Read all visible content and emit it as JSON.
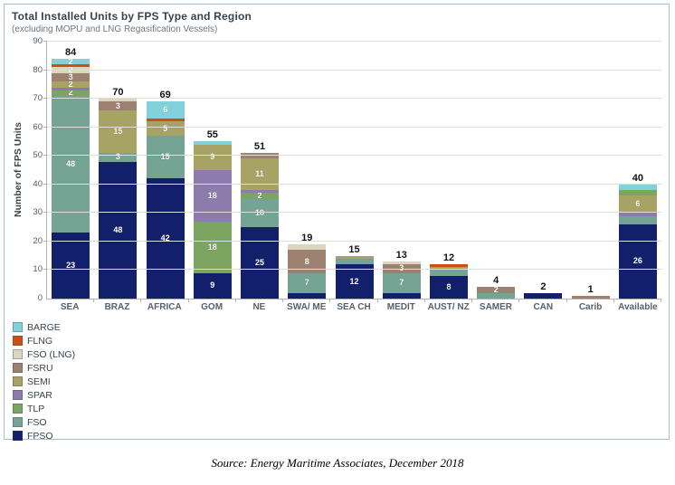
{
  "header": {
    "title": "Total Installed Units by FPS Type and Region",
    "subtitle": "(excluding MOPU and LNG Regasification Vessels)"
  },
  "y_axis": {
    "label": "Number of FPS Units",
    "ticks": [
      0,
      10,
      20,
      30,
      40,
      50,
      60,
      70,
      80,
      90
    ],
    "max": 90
  },
  "types": {
    "FPSO": "#12206b",
    "FSO": "#75a494",
    "TLP": "#7da562",
    "SPAR": "#8d7bad",
    "SEMI": "#a7a365",
    "FSRU": "#9c8170",
    "FSO (LNG)": "#dcd5bf",
    "FLNG": "#cc4f16",
    "BARGE": "#82d1da"
  },
  "legend": {
    "position": "bottom-left",
    "items": [
      "BARGE",
      "FLNG",
      "FSO (LNG)",
      "FSRU",
      "SEMI",
      "SPAR",
      "TLP",
      "FSO",
      "FPSO"
    ]
  },
  "chart_data": {
    "type": "bar",
    "stacked": true,
    "grid": true,
    "title": "Total Installed Units by FPS Type and Region",
    "subtitle": "(excluding MOPU and LNG Regasification Vessels)",
    "xlabel": "",
    "ylabel": "Number of FPS Units",
    "ylim": [
      0,
      90
    ],
    "categories": [
      "SEA",
      "BRAZ",
      "AFRICA",
      "GOM",
      "NE",
      "SWA/ ME",
      "SEA CH",
      "MEDIT",
      "AUST/ NZ",
      "SAMER",
      "CAN",
      "Carib",
      "Available"
    ],
    "totals": [
      84,
      70,
      69,
      55,
      51,
      19,
      15,
      13,
      12,
      4,
      2,
      1,
      40
    ],
    "bars": [
      {
        "category": "SEA",
        "total": 84,
        "segments": [
          {
            "type": "FPSO",
            "value": 23,
            "label": "23"
          },
          {
            "type": "FSO",
            "value": 48,
            "label": "48"
          },
          {
            "type": "TLP",
            "value": 2,
            "label": "2"
          },
          {
            "type": "SPAR",
            "value": 1,
            "label": ""
          },
          {
            "type": "SEMI",
            "value": 2,
            "label": "2"
          },
          {
            "type": "FSRU",
            "value": 3,
            "label": "3"
          },
          {
            "type": "FSO (LNG)",
            "value": 2,
            "label": "2"
          },
          {
            "type": "FLNG",
            "value": 1,
            "label": ""
          },
          {
            "type": "BARGE",
            "value": 2,
            "label": "2"
          }
        ]
      },
      {
        "category": "BRAZ",
        "total": 70,
        "segments": [
          {
            "type": "FPSO",
            "value": 48,
            "label": "48"
          },
          {
            "type": "FSO",
            "value": 3,
            "label": "3"
          },
          {
            "type": "SEMI",
            "value": 15,
            "label": "15"
          },
          {
            "type": "FSRU",
            "value": 3,
            "label": "3"
          },
          {
            "type": "FSO (LNG)",
            "value": 1,
            "label": ""
          }
        ]
      },
      {
        "category": "AFRICA",
        "total": 69,
        "segments": [
          {
            "type": "FPSO",
            "value": 42,
            "label": "42"
          },
          {
            "type": "FSO",
            "value": 15,
            "label": "15"
          },
          {
            "type": "SEMI",
            "value": 5,
            "label": "5"
          },
          {
            "type": "FLNG",
            "value": 1,
            "label": ""
          },
          {
            "type": "BARGE",
            "value": 6,
            "label": "6"
          }
        ]
      },
      {
        "category": "GOM",
        "total": 55,
        "segments": [
          {
            "type": "FPSO",
            "value": 9,
            "label": "9"
          },
          {
            "type": "TLP",
            "value": 18,
            "label": "18"
          },
          {
            "type": "SPAR",
            "value": 18,
            "label": "18"
          },
          {
            "type": "SEMI",
            "value": 9,
            "label": "9"
          },
          {
            "type": "BARGE",
            "value": 1,
            "label": ""
          }
        ]
      },
      {
        "category": "NE",
        "total": 51,
        "segments": [
          {
            "type": "FPSO",
            "value": 25,
            "label": "25"
          },
          {
            "type": "FSO",
            "value": 10,
            "label": "10"
          },
          {
            "type": "TLP",
            "value": 2,
            "label": "2"
          },
          {
            "type": "SPAR",
            "value": 1,
            "label": ""
          },
          {
            "type": "SEMI",
            "value": 11,
            "label": "11"
          },
          {
            "type": "FSRU",
            "value": 2,
            "label": ""
          }
        ]
      },
      {
        "category": "SWA/ ME",
        "total": 19,
        "segments": [
          {
            "type": "FPSO",
            "value": 2,
            "label": ""
          },
          {
            "type": "FSO",
            "value": 7,
            "label": "7"
          },
          {
            "type": "FSRU",
            "value": 8,
            "label": "8"
          },
          {
            "type": "FSO (LNG)",
            "value": 2,
            "label": ""
          }
        ]
      },
      {
        "category": "SEA CH",
        "total": 15,
        "segments": [
          {
            "type": "FPSO",
            "value": 12,
            "label": "12"
          },
          {
            "type": "FSO",
            "value": 2,
            "label": ""
          },
          {
            "type": "SEMI",
            "value": 1,
            "label": ""
          }
        ]
      },
      {
        "category": "MEDIT",
        "total": 13,
        "segments": [
          {
            "type": "FPSO",
            "value": 2,
            "label": ""
          },
          {
            "type": "FSO",
            "value": 7,
            "label": "7"
          },
          {
            "type": "FSRU",
            "value": 3,
            "label": "3"
          },
          {
            "type": "FSO (LNG)",
            "value": 1,
            "label": ""
          }
        ]
      },
      {
        "category": "AUST/ NZ",
        "total": 12,
        "segments": [
          {
            "type": "FPSO",
            "value": 8,
            "label": "8"
          },
          {
            "type": "FSO",
            "value": 2,
            "label": ""
          },
          {
            "type": "SEMI",
            "value": 1,
            "label": ""
          },
          {
            "type": "FLNG",
            "value": 1,
            "label": ""
          }
        ]
      },
      {
        "category": "SAMER",
        "total": 4,
        "segments": [
          {
            "type": "FSO",
            "value": 2,
            "label": ""
          },
          {
            "type": "FSRU",
            "value": 2,
            "label": "2"
          }
        ]
      },
      {
        "category": "CAN",
        "total": 2,
        "segments": [
          {
            "type": "FPSO",
            "value": 2,
            "label": ""
          }
        ]
      },
      {
        "category": "Carib",
        "total": 1,
        "segments": [
          {
            "type": "FSRU",
            "value": 1,
            "label": ""
          }
        ]
      },
      {
        "category": "Available",
        "total": 40,
        "segments": [
          {
            "type": "FPSO",
            "value": 26,
            "label": "26"
          },
          {
            "type": "FSO",
            "value": 3,
            "label": ""
          },
          {
            "type": "SPAR",
            "value": 1,
            "label": ""
          },
          {
            "type": "SEMI",
            "value": 6,
            "label": "6"
          },
          {
            "type": "TLP",
            "value": 2,
            "label": ""
          },
          {
            "type": "BARGE",
            "value": 2,
            "label": ""
          }
        ]
      }
    ]
  },
  "source": {
    "text": "Source: Energy Maritime Associates, December 2018"
  }
}
